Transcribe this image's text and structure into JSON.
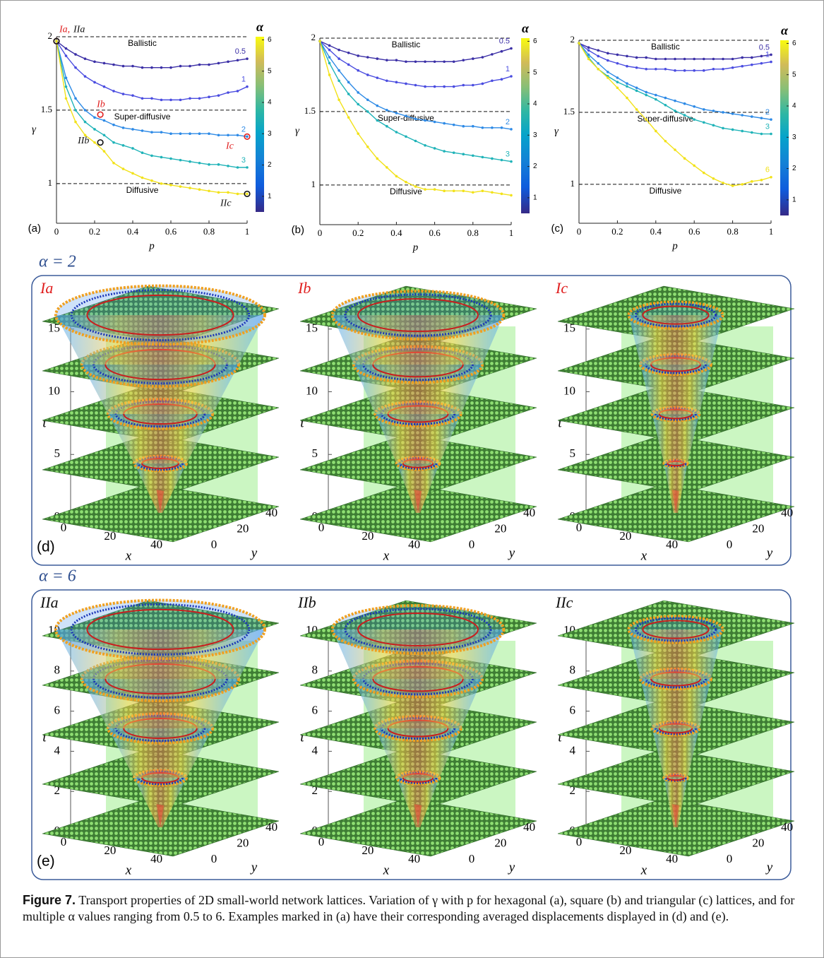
{
  "chart_data": [
    {
      "type": "line",
      "panel_label": "(a)",
      "xlabel": "p",
      "ylabel": "γ",
      "xlim": [
        0,
        1
      ],
      "ylim": [
        0.73,
        2
      ],
      "xticks": [
        0,
        0.2,
        0.4,
        0.6,
        0.8,
        1
      ],
      "yticks": [
        1,
        1.5,
        2
      ],
      "x": [
        0,
        0.05,
        0.1,
        0.15,
        0.2,
        0.25,
        0.3,
        0.35,
        0.4,
        0.45,
        0.5,
        0.55,
        0.6,
        0.65,
        0.7,
        0.75,
        0.8,
        0.85,
        0.9,
        0.95,
        1
      ],
      "reference_lines": [
        {
          "value": 2,
          "label": "Ballistic"
        },
        {
          "value": 1.5,
          "label": "Super-diffusive"
        },
        {
          "value": 1,
          "label": "Diffusive"
        }
      ],
      "series": [
        {
          "name": "0.5",
          "color": "#3b2fa6",
          "values": [
            1.97,
            1.92,
            1.88,
            1.85,
            1.83,
            1.82,
            1.81,
            1.8,
            1.8,
            1.79,
            1.79,
            1.79,
            1.79,
            1.8,
            1.8,
            1.81,
            1.81,
            1.82,
            1.83,
            1.84,
            1.85
          ]
        },
        {
          "name": "1",
          "color": "#4a4ce0",
          "values": [
            1.97,
            1.87,
            1.79,
            1.73,
            1.69,
            1.66,
            1.63,
            1.61,
            1.6,
            1.58,
            1.58,
            1.57,
            1.57,
            1.57,
            1.58,
            1.58,
            1.59,
            1.6,
            1.62,
            1.63,
            1.66
          ]
        },
        {
          "name": "2",
          "color": "#2d8ae6",
          "values": [
            1.97,
            1.72,
            1.58,
            1.5,
            1.45,
            1.43,
            1.4,
            1.38,
            1.37,
            1.36,
            1.35,
            1.35,
            1.34,
            1.34,
            1.34,
            1.34,
            1.34,
            1.33,
            1.33,
            1.33,
            1.32
          ]
        },
        {
          "name": "3",
          "color": "#1fb3b8",
          "values": [
            1.97,
            1.66,
            1.5,
            1.42,
            1.37,
            1.33,
            1.28,
            1.26,
            1.24,
            1.21,
            1.19,
            1.18,
            1.17,
            1.16,
            1.15,
            1.14,
            1.13,
            1.13,
            1.12,
            1.11,
            1.11
          ]
        },
        {
          "color": "#f2e21a",
          "values": [
            1.97,
            1.58,
            1.42,
            1.33,
            1.28,
            1.22,
            1.14,
            1.1,
            1.07,
            1.04,
            1.02,
            1,
            0.99,
            0.98,
            0.97,
            0.96,
            0.95,
            0.94,
            0.94,
            0.93,
            0.93
          ]
        }
      ],
      "markers": [
        {
          "label": "Ia,",
          "x": 0,
          "y": 1.97,
          "color": "#e02020"
        },
        {
          "label": "IIa",
          "x": 0,
          "y": 1.97,
          "color": "#111111"
        },
        {
          "label": "Ib",
          "x": 0.23,
          "y": 1.47,
          "color": "#e02020"
        },
        {
          "label": "IIb",
          "x": 0.23,
          "y": 1.28,
          "color": "#111111"
        },
        {
          "label": "Ic",
          "x": 1,
          "y": 1.32,
          "color": "#e02020"
        },
        {
          "label": "IIc",
          "x": 1,
          "y": 0.93,
          "color": "#111111"
        }
      ],
      "colorbar": {
        "label": "α",
        "lim": [
          0.5,
          6.1
        ],
        "ticks": [
          1,
          2,
          3,
          4,
          5,
          6
        ]
      }
    },
    {
      "type": "line",
      "panel_label": "(b)",
      "xlabel": "p",
      "ylabel": "γ",
      "xlim": [
        0,
        1
      ],
      "ylim": [
        0.73,
        2
      ],
      "xticks": [
        0,
        0.2,
        0.4,
        0.6,
        0.8,
        1
      ],
      "yticks": [
        1,
        1.5,
        2
      ],
      "x": [
        0,
        0.05,
        0.1,
        0.15,
        0.2,
        0.25,
        0.3,
        0.35,
        0.4,
        0.45,
        0.5,
        0.55,
        0.6,
        0.65,
        0.7,
        0.75,
        0.8,
        0.85,
        0.9,
        0.95,
        1
      ],
      "reference_lines": [
        {
          "value": 2,
          "label": "Ballistic"
        },
        {
          "value": 1.5,
          "label": "Super-diffusive"
        },
        {
          "value": 1,
          "label": "Diffusive"
        }
      ],
      "series": [
        {
          "name": "0.5",
          "color": "#3b2fa6",
          "values": [
            1.98,
            1.95,
            1.92,
            1.9,
            1.88,
            1.87,
            1.86,
            1.85,
            1.85,
            1.84,
            1.84,
            1.84,
            1.84,
            1.84,
            1.84,
            1.85,
            1.86,
            1.87,
            1.89,
            1.91,
            1.93
          ]
        },
        {
          "name": "1",
          "color": "#4a4ce0",
          "values": [
            1.98,
            1.92,
            1.86,
            1.82,
            1.78,
            1.75,
            1.73,
            1.71,
            1.7,
            1.69,
            1.68,
            1.67,
            1.67,
            1.67,
            1.67,
            1.68,
            1.68,
            1.69,
            1.71,
            1.72,
            1.74
          ]
        },
        {
          "name": "2",
          "color": "#2d8ae6",
          "values": [
            1.98,
            1.87,
            1.78,
            1.7,
            1.63,
            1.58,
            1.54,
            1.51,
            1.49,
            1.47,
            1.45,
            1.44,
            1.43,
            1.42,
            1.41,
            1.4,
            1.4,
            1.39,
            1.39,
            1.39,
            1.38
          ]
        },
        {
          "name": "3",
          "color": "#1fb3b8",
          "values": [
            1.98,
            1.83,
            1.71,
            1.62,
            1.55,
            1.5,
            1.44,
            1.4,
            1.36,
            1.33,
            1.3,
            1.27,
            1.25,
            1.23,
            1.22,
            1.21,
            1.2,
            1.19,
            1.18,
            1.17,
            1.16
          ]
        },
        {
          "color": "#f2e21a",
          "values": [
            1.98,
            1.75,
            1.58,
            1.46,
            1.35,
            1.26,
            1.18,
            1.12,
            1.06,
            1.02,
            0.99,
            0.97,
            0.97,
            0.96,
            0.96,
            0.96,
            0.95,
            0.96,
            0.95,
            0.94,
            0.93
          ]
        }
      ],
      "colorbar": {
        "label": "α",
        "lim": [
          0.5,
          6.1
        ],
        "ticks": [
          1,
          2,
          3,
          4,
          5,
          6
        ]
      }
    },
    {
      "type": "line",
      "panel_label": "(c)",
      "xlabel": "p",
      "ylabel": "γ",
      "xlim": [
        0,
        1
      ],
      "ylim": [
        0.73,
        2
      ],
      "xticks": [
        0,
        0.2,
        0.4,
        0.6,
        0.8,
        1
      ],
      "yticks": [
        1,
        1.5,
        2
      ],
      "x": [
        0,
        0.05,
        0.1,
        0.15,
        0.2,
        0.25,
        0.3,
        0.35,
        0.4,
        0.45,
        0.5,
        0.55,
        0.6,
        0.65,
        0.7,
        0.75,
        0.8,
        0.85,
        0.9,
        0.95,
        1
      ],
      "reference_lines": [
        {
          "value": 2,
          "label": "Ballistic"
        },
        {
          "value": 1.5,
          "label": "Super-diffusive"
        },
        {
          "value": 1,
          "label": "Diffusive"
        }
      ],
      "series": [
        {
          "name": "0.5",
          "color": "#3b2fa6",
          "values": [
            1.98,
            1.95,
            1.93,
            1.91,
            1.9,
            1.89,
            1.88,
            1.88,
            1.87,
            1.87,
            1.87,
            1.87,
            1.87,
            1.87,
            1.87,
            1.87,
            1.87,
            1.88,
            1.88,
            1.89,
            1.9
          ]
        },
        {
          "name": "1",
          "color": "#4a4ce0",
          "values": [
            1.98,
            1.93,
            1.89,
            1.86,
            1.84,
            1.82,
            1.81,
            1.8,
            1.8,
            1.8,
            1.79,
            1.79,
            1.79,
            1.79,
            1.8,
            1.8,
            1.81,
            1.82,
            1.83,
            1.84,
            1.85
          ]
        },
        {
          "name": "2",
          "color": "#2d8ae6",
          "values": [
            1.98,
            1.9,
            1.84,
            1.78,
            1.74,
            1.7,
            1.67,
            1.64,
            1.62,
            1.6,
            1.58,
            1.56,
            1.54,
            1.52,
            1.51,
            1.5,
            1.49,
            1.48,
            1.47,
            1.46,
            1.45
          ]
        },
        {
          "name": "3",
          "color": "#1fb3b8",
          "values": [
            1.98,
            1.88,
            1.8,
            1.75,
            1.71,
            1.68,
            1.65,
            1.62,
            1.59,
            1.55,
            1.51,
            1.48,
            1.45,
            1.43,
            1.41,
            1.39,
            1.38,
            1.37,
            1.36,
            1.35,
            1.35
          ]
        },
        {
          "name": "6",
          "color": "#f2e21a",
          "values": [
            1.98,
            1.87,
            1.8,
            1.74,
            1.67,
            1.6,
            1.52,
            1.45,
            1.37,
            1.3,
            1.24,
            1.18,
            1.13,
            1.08,
            1.04,
            1.01,
            0.99,
            1,
            1.02,
            1.03,
            1.05
          ]
        }
      ],
      "colorbar": {
        "label": "α",
        "lim": [
          0.5,
          6.1
        ],
        "ticks": [
          1,
          2,
          3,
          4,
          5,
          6
        ]
      }
    }
  ],
  "panels": [
    {
      "header": "α = 2",
      "letter": "(d)",
      "t_label": "t",
      "x_label": "x",
      "y_label": "y",
      "tlim": [
        0,
        16
      ],
      "xlim": [
        0,
        48
      ],
      "ylim": [
        0,
        48
      ],
      "t_ticks": [
        0,
        5,
        10,
        15
      ],
      "x_ticks": [
        0,
        20,
        40
      ],
      "y_ticks": [
        0,
        20,
        40
      ],
      "subpanels": [
        {
          "title": "Ia",
          "color": "#e02020"
        },
        {
          "title": "Ib",
          "color": "#e02020"
        },
        {
          "title": "Ic",
          "color": "#e02020"
        }
      ]
    },
    {
      "header": "α = 6",
      "letter": "(e)",
      "t_label": "t",
      "x_label": "x",
      "y_label": "y",
      "tlim": [
        0,
        10
      ],
      "xlim": [
        0,
        48
      ],
      "ylim": [
        0,
        48
      ],
      "t_ticks": [
        0,
        2,
        4,
        6,
        8,
        10
      ],
      "x_ticks": [
        0,
        20,
        40
      ],
      "y_ticks": [
        0,
        20,
        40
      ],
      "subpanels": [
        {
          "title": "IIa",
          "color": "#111111"
        },
        {
          "title": "IIb",
          "color": "#111111"
        },
        {
          "title": "IIc",
          "color": "#111111"
        }
      ]
    }
  ],
  "caption": {
    "label": "Figure 7.",
    "text": "Transport properties of 2D small-world network lattices. Variation of γ with p for hexagonal (a), square (b) and triangular (c) lattices, and for multiple α values ranging from 0.5 to 6. Examples marked in (a) have their corresponding averaged displacements displayed in (d) and (e)."
  }
}
